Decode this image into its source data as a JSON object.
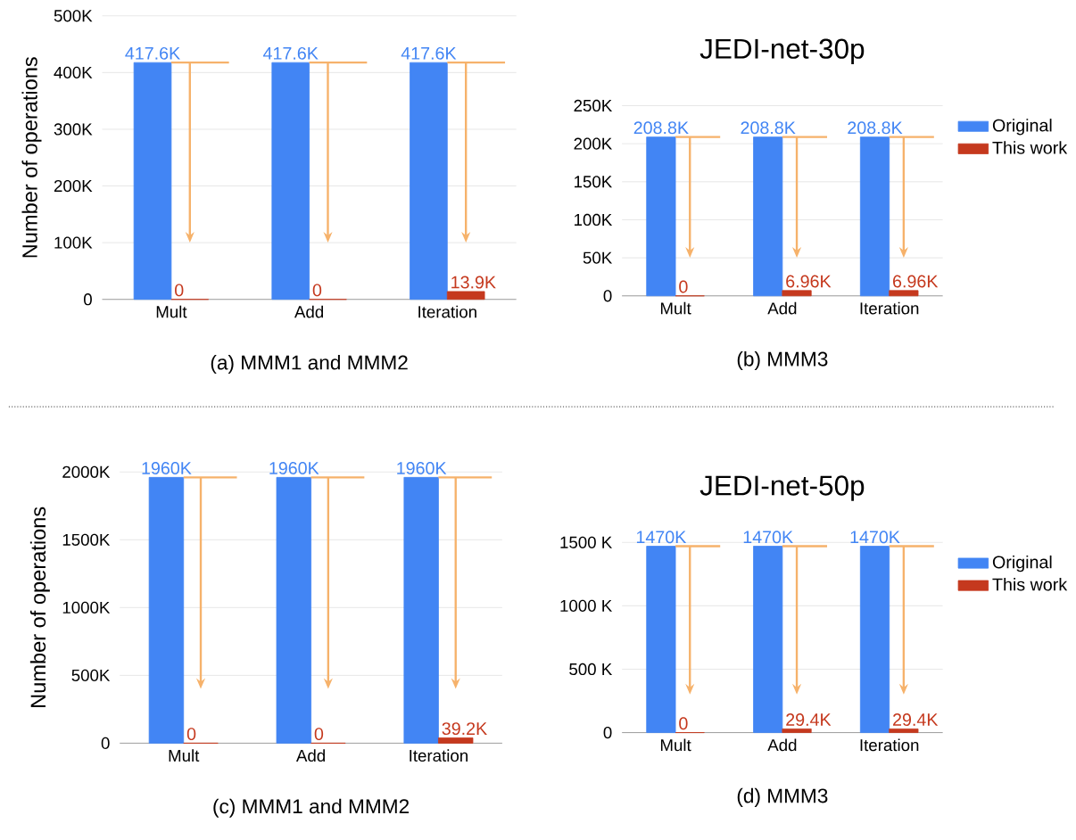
{
  "chart_data": [
    {
      "type": "bar",
      "ylabel": "Number of operations",
      "categories": [
        "Mult",
        "Add",
        "Iteration"
      ],
      "series": [
        {
          "color": "#4285f4",
          "values": [
            417.6,
            417.6,
            417.6
          ],
          "value_labels": [
            "417.6K",
            "417.6K",
            "417.6K"
          ]
        },
        {
          "color": "#c5391e",
          "values": [
            0,
            0,
            13.9
          ],
          "value_labels": [
            "0",
            "0",
            "13.9K"
          ]
        }
      ],
      "ylim": [
        0,
        500
      ],
      "yticks": [
        0,
        {
          "value": 100,
          "label": "100K"
        },
        {
          "value": 200,
          "label": "200K"
        },
        {
          "value": 300,
          "label": "300K"
        },
        {
          "value": 400,
          "label": "400K"
        },
        {
          "value": 500,
          "label": "500K"
        }
      ],
      "grid": "y",
      "annotations": [
        "(a) MMM1 and MMM2"
      ]
    },
    {
      "type": "bar",
      "title": "JEDI-net-30p",
      "categories": [
        "Mult",
        "Add",
        "Iteration"
      ],
      "series": [
        {
          "name": "Original",
          "color": "#4285f4",
          "values": [
            208.8,
            208.8,
            208.8
          ],
          "value_labels": [
            "208.8K",
            "208.8K",
            "208.8K"
          ]
        },
        {
          "name": "This work",
          "color": "#c5391e",
          "values": [
            0,
            6.96,
            6.96
          ],
          "value_labels": [
            "0",
            "6.96K",
            "6.96K"
          ]
        }
      ],
      "ylim": [
        0,
        250
      ],
      "yticks": [
        0,
        {
          "value": 50,
          "label": "50K"
        },
        {
          "value": 100,
          "label": "100K"
        },
        {
          "value": 150,
          "label": "150K"
        },
        {
          "value": 200,
          "label": "200K"
        },
        {
          "value": 250,
          "label": "250K"
        }
      ],
      "grid": "y",
      "legend": "right",
      "annotations": [
        "(b) MMM3"
      ]
    },
    {
      "type": "bar",
      "ylabel": "Number of operations",
      "categories": [
        "Mult",
        "Add",
        "Iteration"
      ],
      "series": [
        {
          "color": "#4285f4",
          "values": [
            1960,
            1960,
            1960
          ],
          "value_labels": [
            "1960K",
            "1960K",
            "1960K"
          ]
        },
        {
          "color": "#c5391e",
          "values": [
            0,
            0,
            39.2
          ],
          "value_labels": [
            "0",
            "0",
            "39.2K"
          ]
        }
      ],
      "ylim": [
        0,
        2000
      ],
      "yticks": [
        0,
        {
          "value": 500,
          "label": "500K"
        },
        {
          "value": 1000,
          "label": "1000K"
        },
        {
          "value": 1500,
          "label": "1500K"
        },
        {
          "value": 2000,
          "label": "2000K"
        }
      ],
      "grid": "y",
      "annotations": [
        "(c) MMM1 and MMM2"
      ]
    },
    {
      "type": "bar",
      "title": "JEDI-net-50p",
      "categories": [
        "Mult",
        "Add",
        "Iteration"
      ],
      "series": [
        {
          "name": "Original",
          "color": "#4285f4",
          "values": [
            1470,
            1470,
            1470
          ],
          "value_labels": [
            "1470K",
            "1470K",
            "1470K"
          ]
        },
        {
          "name": "This work",
          "color": "#c5391e",
          "values": [
            0,
            29.4,
            29.4
          ],
          "value_labels": [
            "0",
            "29.4K",
            "29.4K"
          ]
        }
      ],
      "ylim": [
        0,
        1500
      ],
      "yticks": [
        0,
        {
          "value": 500,
          "label": "500 K"
        },
        {
          "value": 1000,
          "label": "1000 K"
        },
        {
          "value": 1500,
          "label": "1500 K"
        }
      ],
      "grid": "y",
      "legend": "right",
      "annotations": [
        "(d) MMM3"
      ]
    }
  ]
}
